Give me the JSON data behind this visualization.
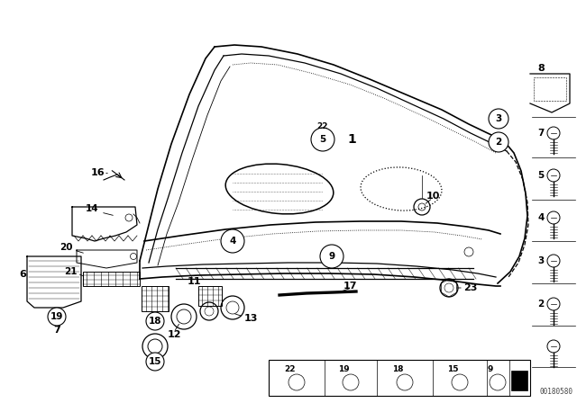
{
  "background_color": "#ffffff",
  "diagram_color": "#000000",
  "part_number": "00180580",
  "fig_width": 6.4,
  "fig_height": 4.48,
  "dpi": 100
}
